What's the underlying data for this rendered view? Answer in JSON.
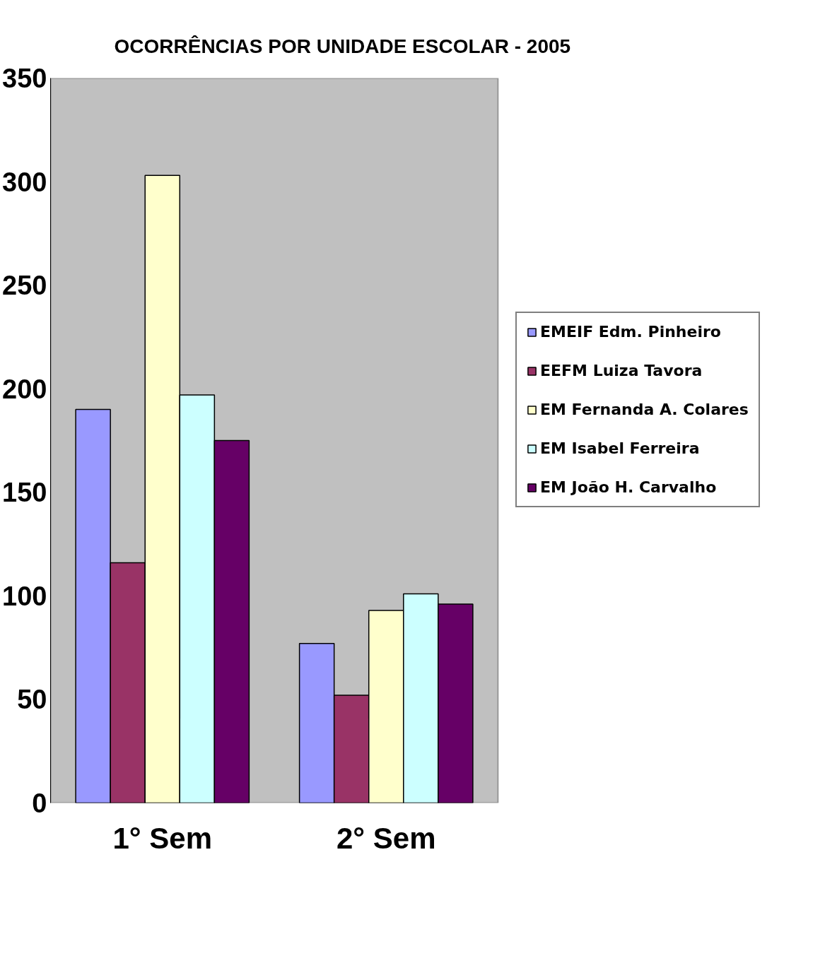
{
  "chart_data": {
    "type": "bar",
    "title": "OCORRÊNCIAS POR UNIDADE ESCOLAR - 2005",
    "categories": [
      "1° Sem",
      "2° Sem"
    ],
    "series": [
      {
        "name": "EMEIF Edm. Pinheiro",
        "color": "#9999ff",
        "values": [
          190,
          77
        ]
      },
      {
        "name": "EEFM Luiza Tavora",
        "color": "#993366",
        "values": [
          116,
          52
        ]
      },
      {
        "name": "EM Fernanda A. Colares",
        "color": "#ffffcc",
        "values": [
          303,
          93
        ]
      },
      {
        "name": "EM Isabel Ferreira",
        "color": "#ccffff",
        "values": [
          197,
          101
        ]
      },
      {
        "name": "EM João H. Carvalho",
        "color": "#660066",
        "values": [
          175,
          96
        ]
      }
    ],
    "ylim": [
      0,
      350
    ],
    "yticks": [
      0,
      50,
      100,
      150,
      200,
      250,
      300,
      350
    ],
    "grid": false,
    "legend": "right"
  }
}
